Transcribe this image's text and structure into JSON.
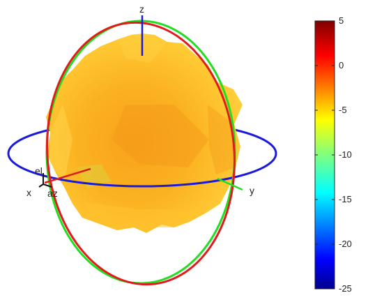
{
  "axes": {
    "x_label": "x",
    "y_label": "y",
    "z_label": "z",
    "az_label": "az",
    "el_label": "el"
  },
  "rings": {
    "azimuth_color": "#1a1adb",
    "elevation_yz_color": "#e01b1b",
    "elevation_xz_color": "#22dd22"
  },
  "pattern": {
    "dominant_color": "#f9a81a",
    "highlight_color": "#ffd24a"
  },
  "colorbar": {
    "min": -25,
    "max": 5,
    "ticks": [
      "5",
      "0",
      "-5",
      "-10",
      "-15",
      "-20",
      "-25"
    ],
    "colormap": "jet"
  }
}
